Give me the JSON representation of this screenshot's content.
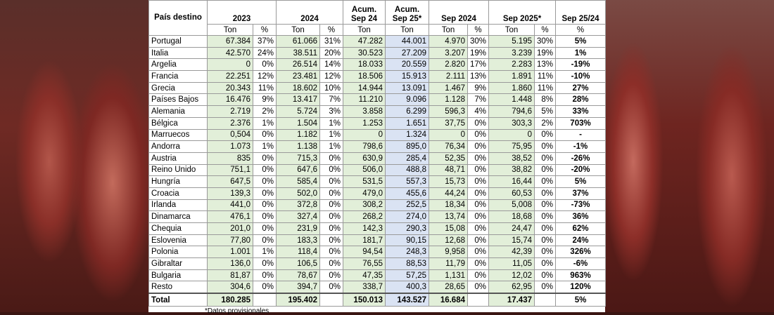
{
  "header": {
    "first_row": [
      "País destino",
      "2023",
      "2024",
      "Acum.\nSep 24",
      "Acum.\nSep 25*",
      "Sep 2024",
      "Sep 2025*",
      "Sep 25/24"
    ],
    "units": [
      "Ton",
      "%",
      "Ton",
      "%",
      "Ton",
      "Ton",
      "Ton",
      "%",
      "Ton",
      "%",
      "%"
    ]
  },
  "table": {
    "rows": [
      [
        "Portugal",
        "67.384",
        "37%",
        "61.066",
        "31%",
        "47.282",
        "44.001",
        "4.970",
        "30%",
        "5.195",
        "30%",
        "5%"
      ],
      [
        "Italia",
        "42.570",
        "24%",
        "38.511",
        "20%",
        "30.523",
        "27.209",
        "3.207",
        "19%",
        "3.239",
        "19%",
        "1%"
      ],
      [
        "Argelia",
        "0",
        "0%",
        "26.514",
        "14%",
        "18.033",
        "20.559",
        "2.820",
        "17%",
        "2.283",
        "13%",
        "-19%"
      ],
      [
        "Francia",
        "22.251",
        "12%",
        "23.481",
        "12%",
        "18.506",
        "15.913",
        "2.111",
        "13%",
        "1.891",
        "11%",
        "-10%"
      ],
      [
        "Grecia",
        "20.343",
        "11%",
        "18.602",
        "10%",
        "14.944",
        "13.091",
        "1.467",
        "9%",
        "1.860",
        "11%",
        "27%"
      ],
      [
        "Países Bajos",
        "16.476",
        "9%",
        "13.417",
        "7%",
        "11.210",
        "9.096",
        "1.128",
        "7%",
        "1.448",
        "8%",
        "28%"
      ],
      [
        "Alemania",
        "2.719",
        "2%",
        "5.724",
        "3%",
        "3.858",
        "6.299",
        "596,3",
        "4%",
        "794,6",
        "5%",
        "33%"
      ],
      [
        "Bélgica",
        "2.376",
        "1%",
        "1.504",
        "1%",
        "1.253",
        "1.651",
        "37,75",
        "0%",
        "303,3",
        "2%",
        "703%"
      ],
      [
        "Marruecos",
        "0,504",
        "0%",
        "1.182",
        "1%",
        "0",
        "1.324",
        "0",
        "0%",
        "0",
        "0%",
        "-"
      ],
      [
        "Andorra",
        "1.073",
        "1%",
        "1.138",
        "1%",
        "798,6",
        "895,0",
        "76,34",
        "0%",
        "75,95",
        "0%",
        "-1%"
      ],
      [
        "Austria",
        "835",
        "0%",
        "715,3",
        "0%",
        "630,9",
        "285,4",
        "52,35",
        "0%",
        "38,52",
        "0%",
        "-26%"
      ],
      [
        "Reino Unido",
        "751,1",
        "0%",
        "647,6",
        "0%",
        "506,0",
        "488,8",
        "48,71",
        "0%",
        "38,82",
        "0%",
        "-20%"
      ],
      [
        "Hungría",
        "647,5",
        "0%",
        "585,4",
        "0%",
        "531,5",
        "557,3",
        "15,73",
        "0%",
        "16,44",
        "0%",
        "5%"
      ],
      [
        "Croacia",
        "139,3",
        "0%",
        "502,0",
        "0%",
        "479,0",
        "455,6",
        "44,24",
        "0%",
        "60,53",
        "0%",
        "37%"
      ],
      [
        "Irlanda",
        "441,0",
        "0%",
        "372,8",
        "0%",
        "308,2",
        "252,5",
        "18,34",
        "0%",
        "5,008",
        "0%",
        "-73%"
      ],
      [
        "Dinamarca",
        "476,1",
        "0%",
        "327,4",
        "0%",
        "268,2",
        "274,0",
        "13,74",
        "0%",
        "18,68",
        "0%",
        "36%"
      ],
      [
        "Chequia",
        "201,0",
        "0%",
        "231,9",
        "0%",
        "142,3",
        "290,3",
        "15,08",
        "0%",
        "24,47",
        "0%",
        "62%"
      ],
      [
        "Eslovenia",
        "77,80",
        "0%",
        "183,3",
        "0%",
        "181,7",
        "90,15",
        "12,68",
        "0%",
        "15,74",
        "0%",
        "24%"
      ],
      [
        "Polonia",
        "1.001",
        "1%",
        "118,4",
        "0%",
        "94,54",
        "248,3",
        "9,958",
        "0%",
        "42,39",
        "0%",
        "326%"
      ],
      [
        "Gibraltar",
        "136,0",
        "0%",
        "106,5",
        "0%",
        "76,55",
        "88,53",
        "11,79",
        "0%",
        "11,05",
        "0%",
        "-6%"
      ],
      [
        "Bulgaria",
        "81,87",
        "0%",
        "78,67",
        "0%",
        "47,35",
        "57,25",
        "1,131",
        "0%",
        "12,02",
        "0%",
        "963%"
      ],
      [
        "Resto",
        "304,6",
        "0%",
        "394,7",
        "0%",
        "338,7",
        "400,3",
        "28,65",
        "0%",
        "62,95",
        "0%",
        "120%"
      ]
    ],
    "total": [
      "Total",
      "180.285",
      null,
      "195.402",
      null,
      "150.013",
      "143.527",
      "16.684",
      null,
      "17.437",
      null,
      "5%"
    ]
  },
  "footnote": "*Datos provisionales"
}
